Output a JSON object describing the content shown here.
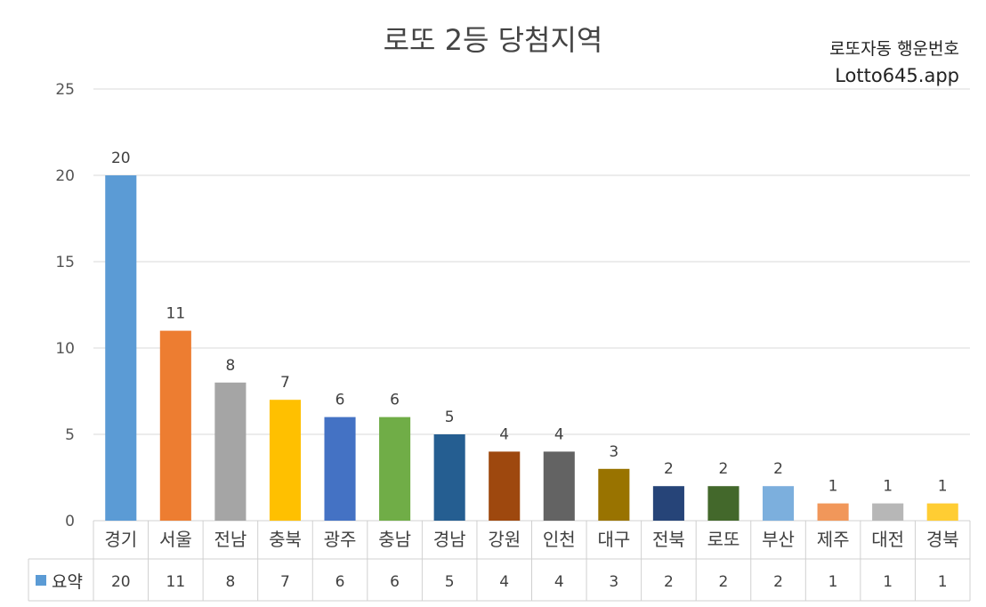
{
  "title": "로또 2등 당첨지역",
  "watermark": {
    "line1": "로또자동 행운번호",
    "line2": "Lotto645.app"
  },
  "legend": {
    "label": "요약",
    "color": "#5b9bd5"
  },
  "chart_data": {
    "type": "bar",
    "title": "로또 2등 당첨지역",
    "categories": [
      "경기",
      "서울",
      "전남",
      "충북",
      "광주",
      "충남",
      "경남",
      "강원",
      "인천",
      "대구",
      "전북",
      "로또",
      "부산",
      "제주",
      "대전",
      "경북"
    ],
    "series": [
      {
        "name": "요약",
        "values": [
          20,
          11,
          8,
          7,
          6,
          6,
          5,
          4,
          4,
          3,
          2,
          2,
          2,
          1,
          1,
          1
        ]
      }
    ],
    "colors": [
      "#5b9bd5",
      "#ed7d31",
      "#a5a5a5",
      "#ffc000",
      "#4472c4",
      "#70ad47",
      "#255e91",
      "#9e480e",
      "#636363",
      "#997300",
      "#264478",
      "#43682b",
      "#7cafdd",
      "#f1975a",
      "#b7b7b7",
      "#ffcd33"
    ],
    "yticks": [
      0,
      5,
      10,
      15,
      20,
      25
    ],
    "ylim": [
      0,
      25
    ],
    "grid": true,
    "data_table": true,
    "xlabel": "",
    "ylabel": ""
  }
}
